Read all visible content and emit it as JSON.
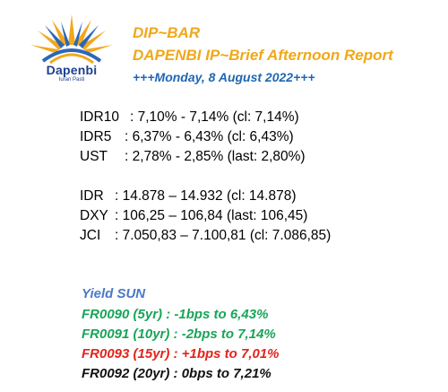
{
  "brand": {
    "name": "Dapenbi",
    "tagline": "Iuran Pasti"
  },
  "header": {
    "line1": "DIP~BAR",
    "line2": "DAPENBI IP~Brief Afternoon Report",
    "line3": "+++Monday, 8 August 2022+++"
  },
  "yields": [
    {
      "label": "IDR10",
      "value": ": 7,10% - 7,14% (cl: 7,14%)"
    },
    {
      "label": "IDR5",
      "value": ": 6,37% - 6,43% (cl: 6,43%)"
    },
    {
      "label": "UST",
      "value": ": 2,78% - 2,85% (last: 2,80%)"
    }
  ],
  "markets": [
    {
      "label": "IDR",
      "value": ": 14.878 – 14.932 (cl: 14.878)"
    },
    {
      "label": "DXY",
      "value": ": 106,25 – 106,84 (last: 106,45)"
    },
    {
      "label": "JCI",
      "value": ": 7.050,83 – 7.100,81 (cl: 7.086,85)"
    }
  ],
  "yield_sun": {
    "title": "Yield SUN",
    "lines": [
      {
        "text": "FR0090 (5yr)   : -1bps to 6,43%",
        "color": "#18a558"
      },
      {
        "text": "FR0091 (10yr) : -2bps to 7,14%",
        "color": "#18a558"
      },
      {
        "text": "FR0093 (15yr) : +1bps to 7,01%",
        "color": "#e3231b"
      },
      {
        "text": "FR0092 (20yr) : 0bps to 7,21%",
        "color": "#111111"
      }
    ]
  }
}
